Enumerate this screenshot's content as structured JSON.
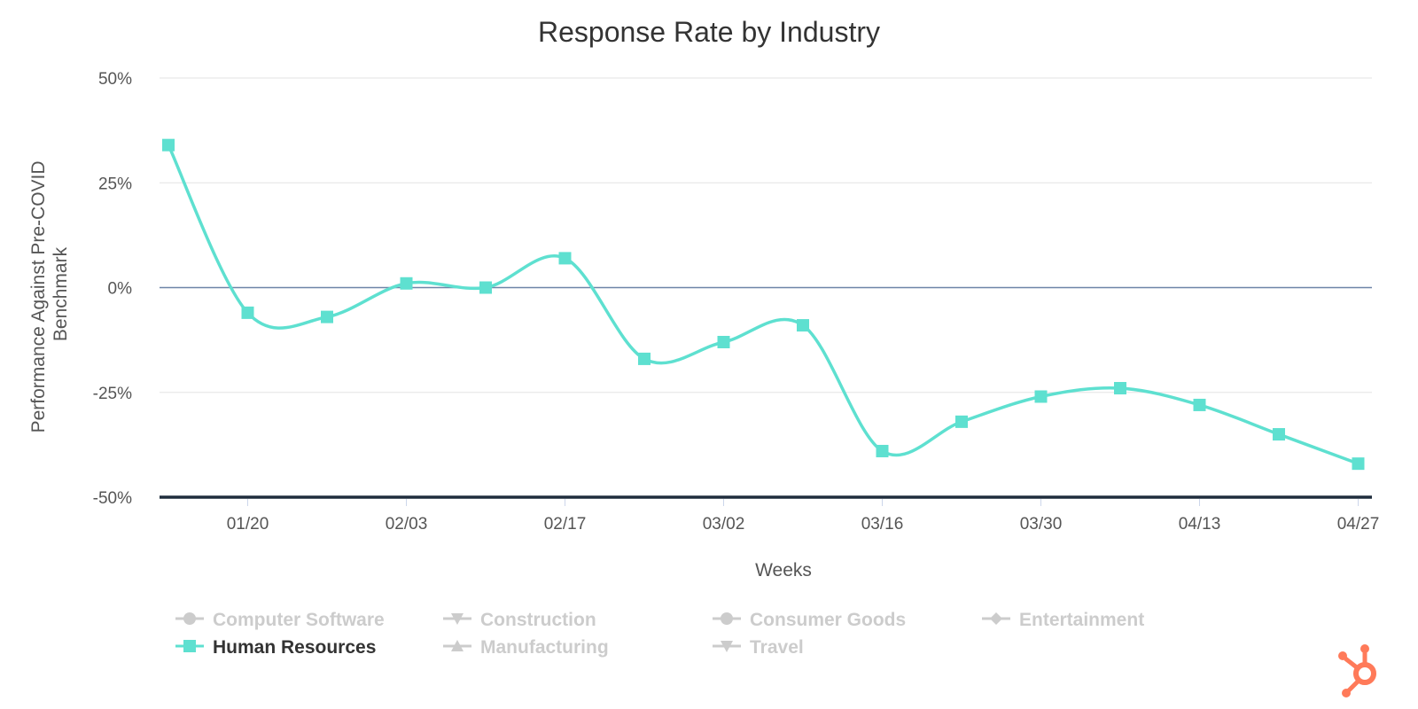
{
  "chart_data": {
    "type": "line",
    "title": "Response Rate by Industry",
    "xlabel": "Weeks",
    "ylabel_lines": [
      "Performance Against Pre-COVID",
      "Benchmark"
    ],
    "y_tick_labels": [
      "50%",
      "25%",
      "0%",
      "-25%",
      "-50%"
    ],
    "y_tick_values": [
      50,
      25,
      0,
      -25,
      -50
    ],
    "ylim": [
      -50,
      50
    ],
    "x_tick_labels": [
      "01/20",
      "02/03",
      "02/17",
      "03/02",
      "03/16",
      "03/30",
      "04/13",
      "04/27"
    ],
    "x_tick_indices": [
      1,
      3,
      5,
      7,
      9,
      11,
      13,
      15
    ],
    "x": [
      "01/13",
      "01/20",
      "01/27",
      "02/03",
      "02/10",
      "02/17",
      "02/24",
      "03/02",
      "03/09",
      "03/16",
      "03/23",
      "03/30",
      "04/06",
      "04/13",
      "04/20",
      "04/27"
    ],
    "series": [
      {
        "name": "Human Resources",
        "values": [
          34,
          -6,
          -7,
          1,
          0,
          7,
          -17,
          -13,
          -9,
          -39,
          -32,
          -26,
          -24,
          -28,
          -35,
          -42
        ],
        "color": "#5ee0d0",
        "marker": "square",
        "visible": true
      }
    ],
    "legend": {
      "placement": "bottom",
      "items": [
        {
          "name": "Computer Software",
          "marker": "circle",
          "visible": false
        },
        {
          "name": "Construction",
          "marker": "triangle-down",
          "visible": false
        },
        {
          "name": "Consumer Goods",
          "marker": "circle",
          "visible": false
        },
        {
          "name": "Entertainment",
          "marker": "diamond",
          "visible": false
        },
        {
          "name": "Human Resources",
          "marker": "square",
          "visible": true
        },
        {
          "name": "Manufacturing",
          "marker": "triangle-up",
          "visible": false
        },
        {
          "name": "Travel",
          "marker": "triangle-down",
          "visible": false
        }
      ],
      "active_color": "#333333",
      "inactive_color": "#cccccc"
    },
    "grid": true,
    "brand_color": "#ff7a59"
  }
}
